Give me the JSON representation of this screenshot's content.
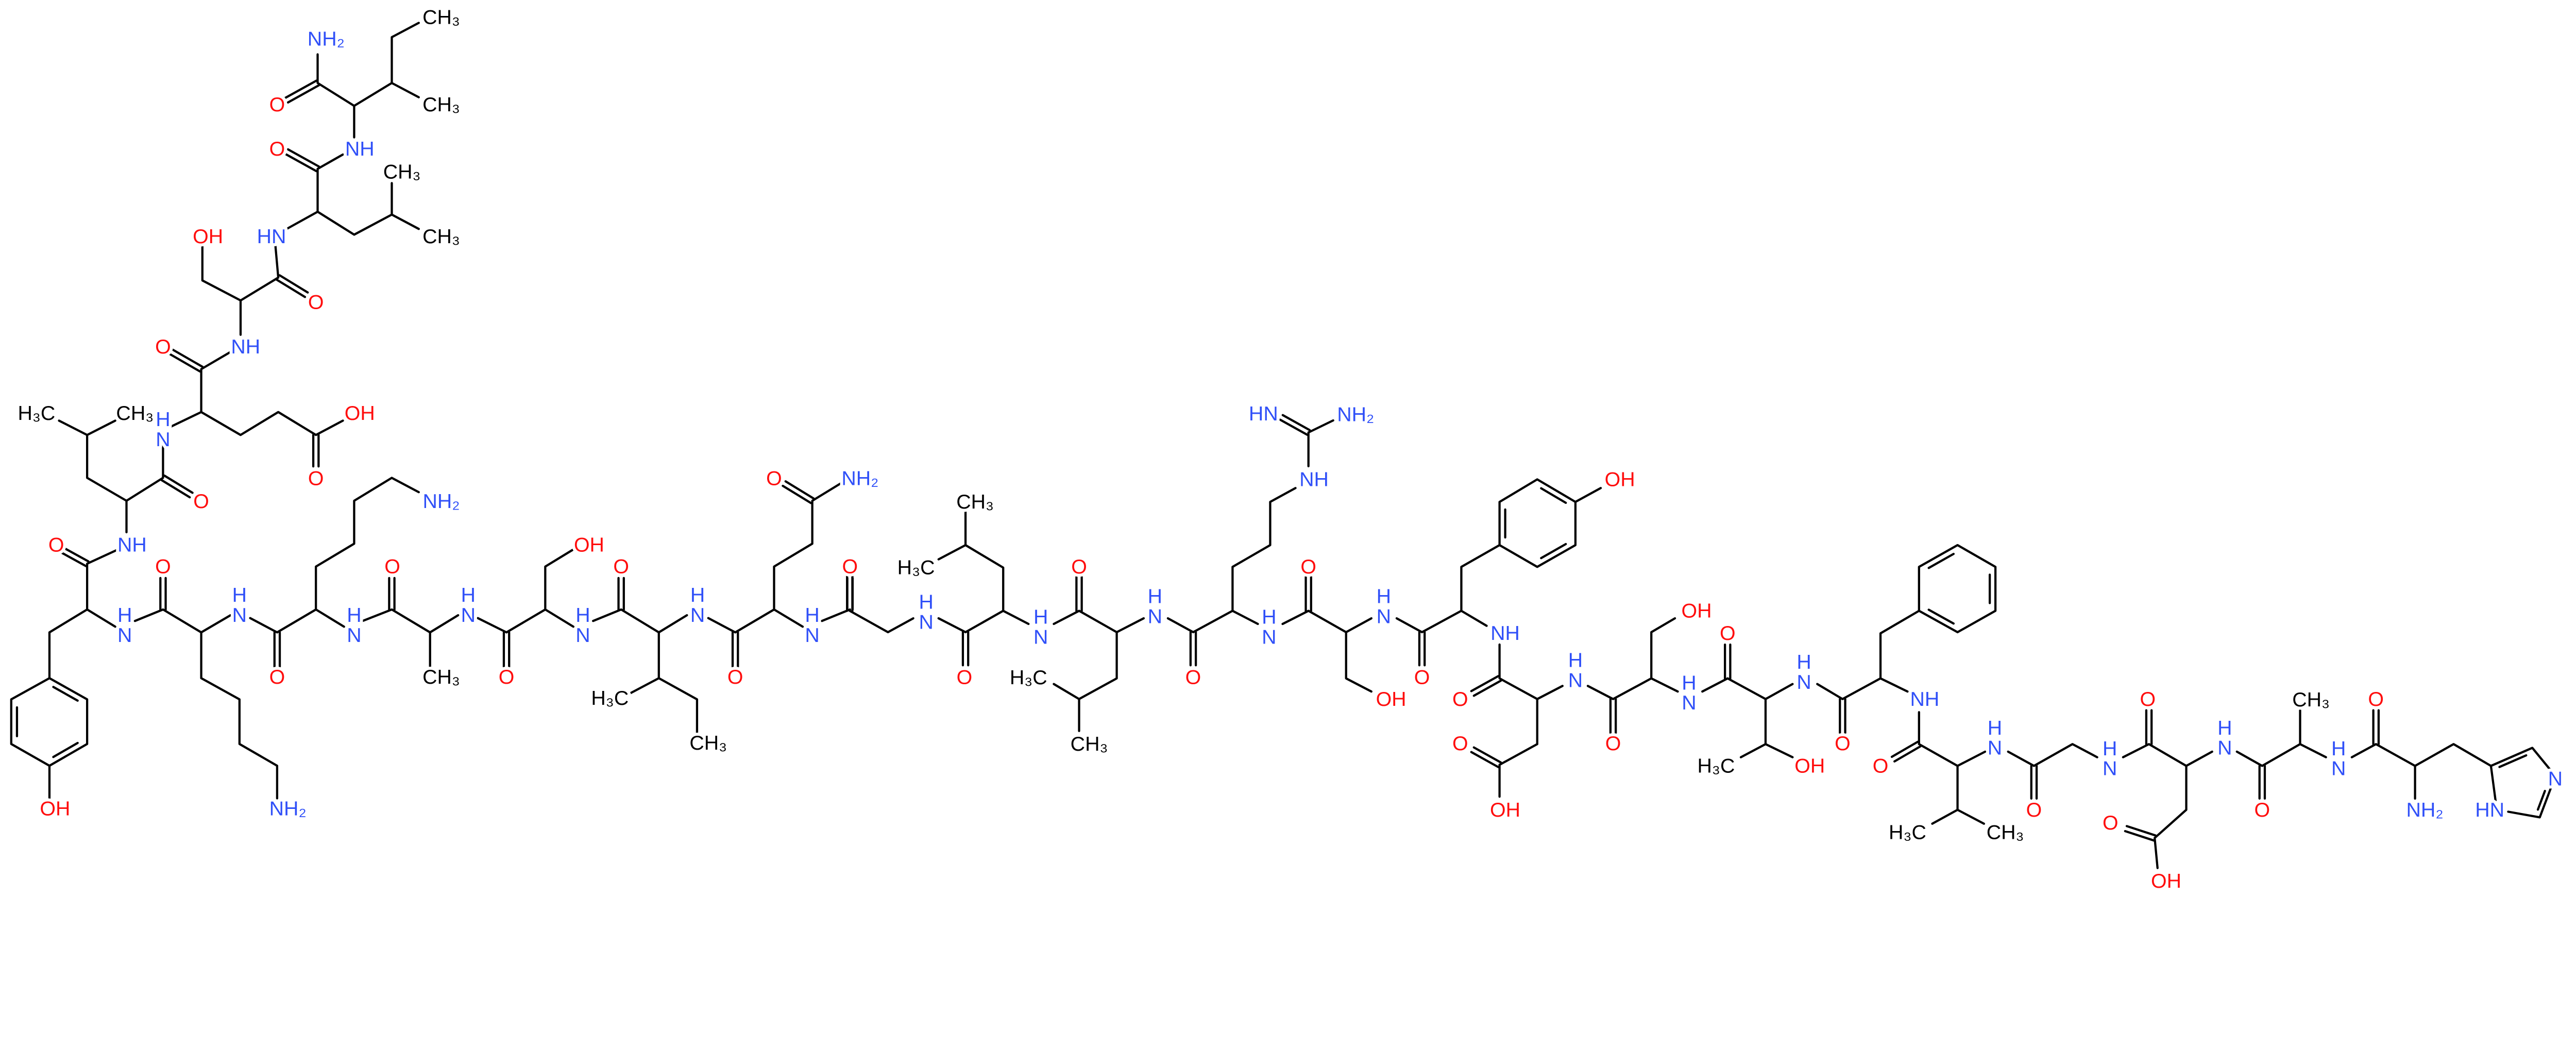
{
  "colors": {
    "oxygen": "#ff0d0d",
    "nitrogen": "#3050f8",
    "carbon": "#000000",
    "background": "#ffffff"
  },
  "atoms": [
    "CH₃",
    "NH₂",
    "O",
    "CH₃",
    "O",
    "NH",
    "CH₃",
    "HN",
    "CH₃",
    "OH",
    "O",
    "O",
    "NH",
    "H₃C",
    "CH₃",
    "HN",
    "OH",
    "O",
    "O",
    "NH₂",
    "O",
    "NH",
    "OH",
    "O",
    "NH₂",
    "O",
    "O",
    "O",
    "O",
    "HN",
    "HN",
    "HN",
    "HN",
    "HN",
    "HN",
    "HN",
    "O",
    "CH₃",
    "O",
    "H₃C",
    "O",
    "CH₃",
    "OH",
    "NH₂",
    "HN",
    "O",
    "CH₃",
    "H₃C",
    "HN",
    "O",
    "H₃C",
    "CH₃",
    "HN",
    "O",
    "HN",
    "NH₂",
    "NH",
    "HN",
    "O",
    "OH",
    "HN",
    "O",
    "OH",
    "NH",
    "O",
    "HN",
    "O",
    "OH",
    "O",
    "OH",
    "O",
    "HN",
    "HN",
    "O",
    "H₃C",
    "OH",
    "NH",
    "O",
    "HN",
    "H₃C",
    "CH₃",
    "O",
    "HN",
    "O",
    "HN",
    "CH₃",
    "O",
    "HN",
    "O",
    "NH₂",
    "HN",
    "N",
    "O",
    "OH"
  ]
}
